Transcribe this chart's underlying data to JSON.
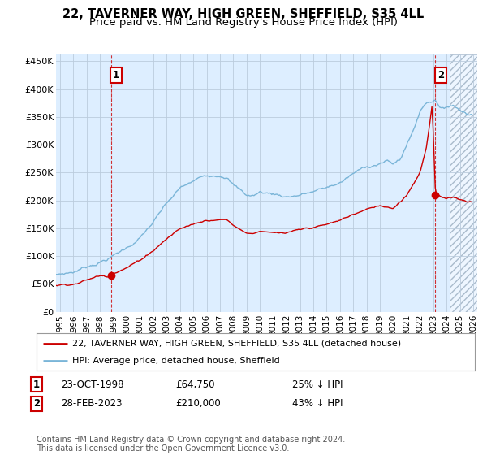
{
  "title": "22, TAVERNER WAY, HIGH GREEN, SHEFFIELD, S35 4LL",
  "subtitle": "Price paid vs. HM Land Registry's House Price Index (HPI)",
  "title_fontsize": 10.5,
  "subtitle_fontsize": 9.5,
  "ylabel_ticks": [
    "£0",
    "£50K",
    "£100K",
    "£150K",
    "£200K",
    "£250K",
    "£300K",
    "£350K",
    "£400K",
    "£450K"
  ],
  "ytick_vals": [
    0,
    50000,
    100000,
    150000,
    200000,
    250000,
    300000,
    350000,
    400000,
    450000
  ],
  "ylim": [
    0,
    462000
  ],
  "xlim_start": 1994.7,
  "xlim_end": 2026.3,
  "xtick_years": [
    1995,
    1996,
    1997,
    1998,
    1999,
    2000,
    2001,
    2002,
    2003,
    2004,
    2005,
    2006,
    2007,
    2008,
    2009,
    2010,
    2011,
    2012,
    2013,
    2014,
    2015,
    2016,
    2017,
    2018,
    2019,
    2020,
    2021,
    2022,
    2023,
    2024,
    2025,
    2026
  ],
  "hpi_color": "#7ab5d8",
  "price_color": "#cc0000",
  "plot_bg_color": "#ddeeff",
  "sale1_x": 1998.81,
  "sale1_y": 64750,
  "sale1_label": "1",
  "sale2_x": 2023.16,
  "sale2_y": 210000,
  "sale2_label": "2",
  "marker_color": "#cc0000",
  "annotation_box_color": "#cc0000",
  "legend_line1": "22, TAVERNER WAY, HIGH GREEN, SHEFFIELD, S35 4LL (detached house)",
  "legend_line2": "HPI: Average price, detached house, Sheffield",
  "note1_label": "1",
  "note1_date": "23-OCT-1998",
  "note1_price": "£64,750",
  "note1_hpi": "25% ↓ HPI",
  "note2_label": "2",
  "note2_date": "28-FEB-2023",
  "note2_price": "£210,000",
  "note2_hpi": "43% ↓ HPI",
  "footer": "Contains HM Land Registry data © Crown copyright and database right 2024.\nThis data is licensed under the Open Government Licence v3.0.",
  "bg_color": "#ffffff",
  "grid_color": "#bbccdd",
  "future_start": 2024.25
}
